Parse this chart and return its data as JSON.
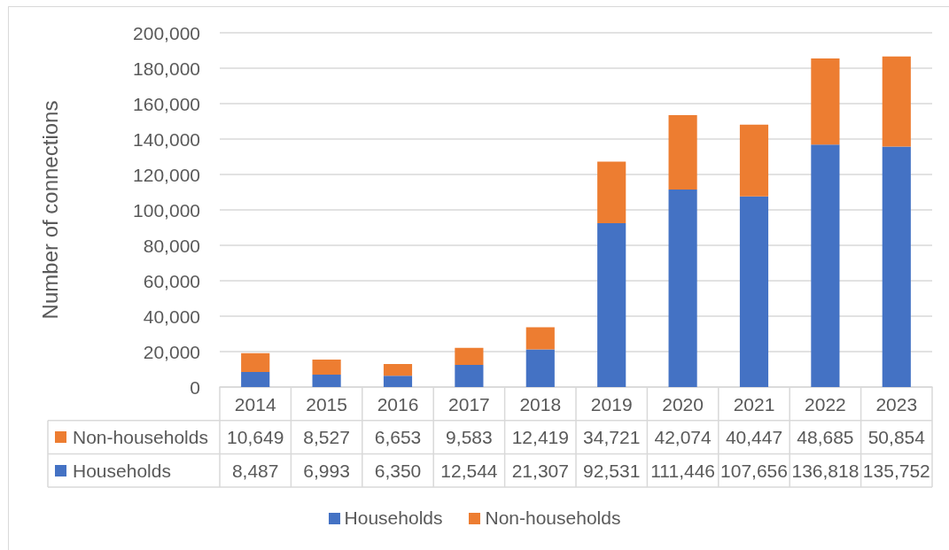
{
  "chart_data": {
    "type": "bar",
    "ylabel": "Number of connections",
    "categories": [
      "2014",
      "2015",
      "2016",
      "2017",
      "2018",
      "2019",
      "2020",
      "2021",
      "2022",
      "2023"
    ],
    "series": [
      {
        "name": "Households",
        "color": "#4472c4",
        "values": [
          8487,
          6993,
          6350,
          12544,
          21307,
          92531,
          111446,
          107656,
          136818,
          135752
        ],
        "value_labels": [
          "8,487",
          "6,993",
          "6,350",
          "12,544",
          "21,307",
          "92,531",
          "111,446",
          "107,656",
          "136,818",
          "135,752"
        ]
      },
      {
        "name": "Non-households",
        "color": "#ed7d31",
        "values": [
          10649,
          8527,
          6653,
          9583,
          12419,
          34721,
          42074,
          40447,
          48685,
          50854
        ],
        "value_labels": [
          "10,649",
          "8,527",
          "6,653",
          "9,583",
          "12,419",
          "34,721",
          "42,074",
          "40,447",
          "48,685",
          "50,854"
        ]
      }
    ],
    "stacked": true,
    "ylim": [
      0,
      200000
    ],
    "yticks": [
      0,
      {
        "value": 20000,
        "label": "20,000"
      },
      {
        "value": 40000,
        "label": "40,000"
      },
      {
        "value": 60000,
        "label": "60,000"
      },
      {
        "value": 80000,
        "label": "80,000"
      },
      {
        "value": 100000,
        "label": "100,000"
      },
      {
        "value": 120000,
        "label": "120,000"
      },
      {
        "value": 140000,
        "label": "140,000"
      },
      {
        "value": 160000,
        "label": "160,000"
      },
      {
        "value": 180000,
        "label": "180,000"
      },
      {
        "value": 200000,
        "label": "200,000"
      }
    ],
    "grid": "y",
    "legend": "bottom"
  }
}
